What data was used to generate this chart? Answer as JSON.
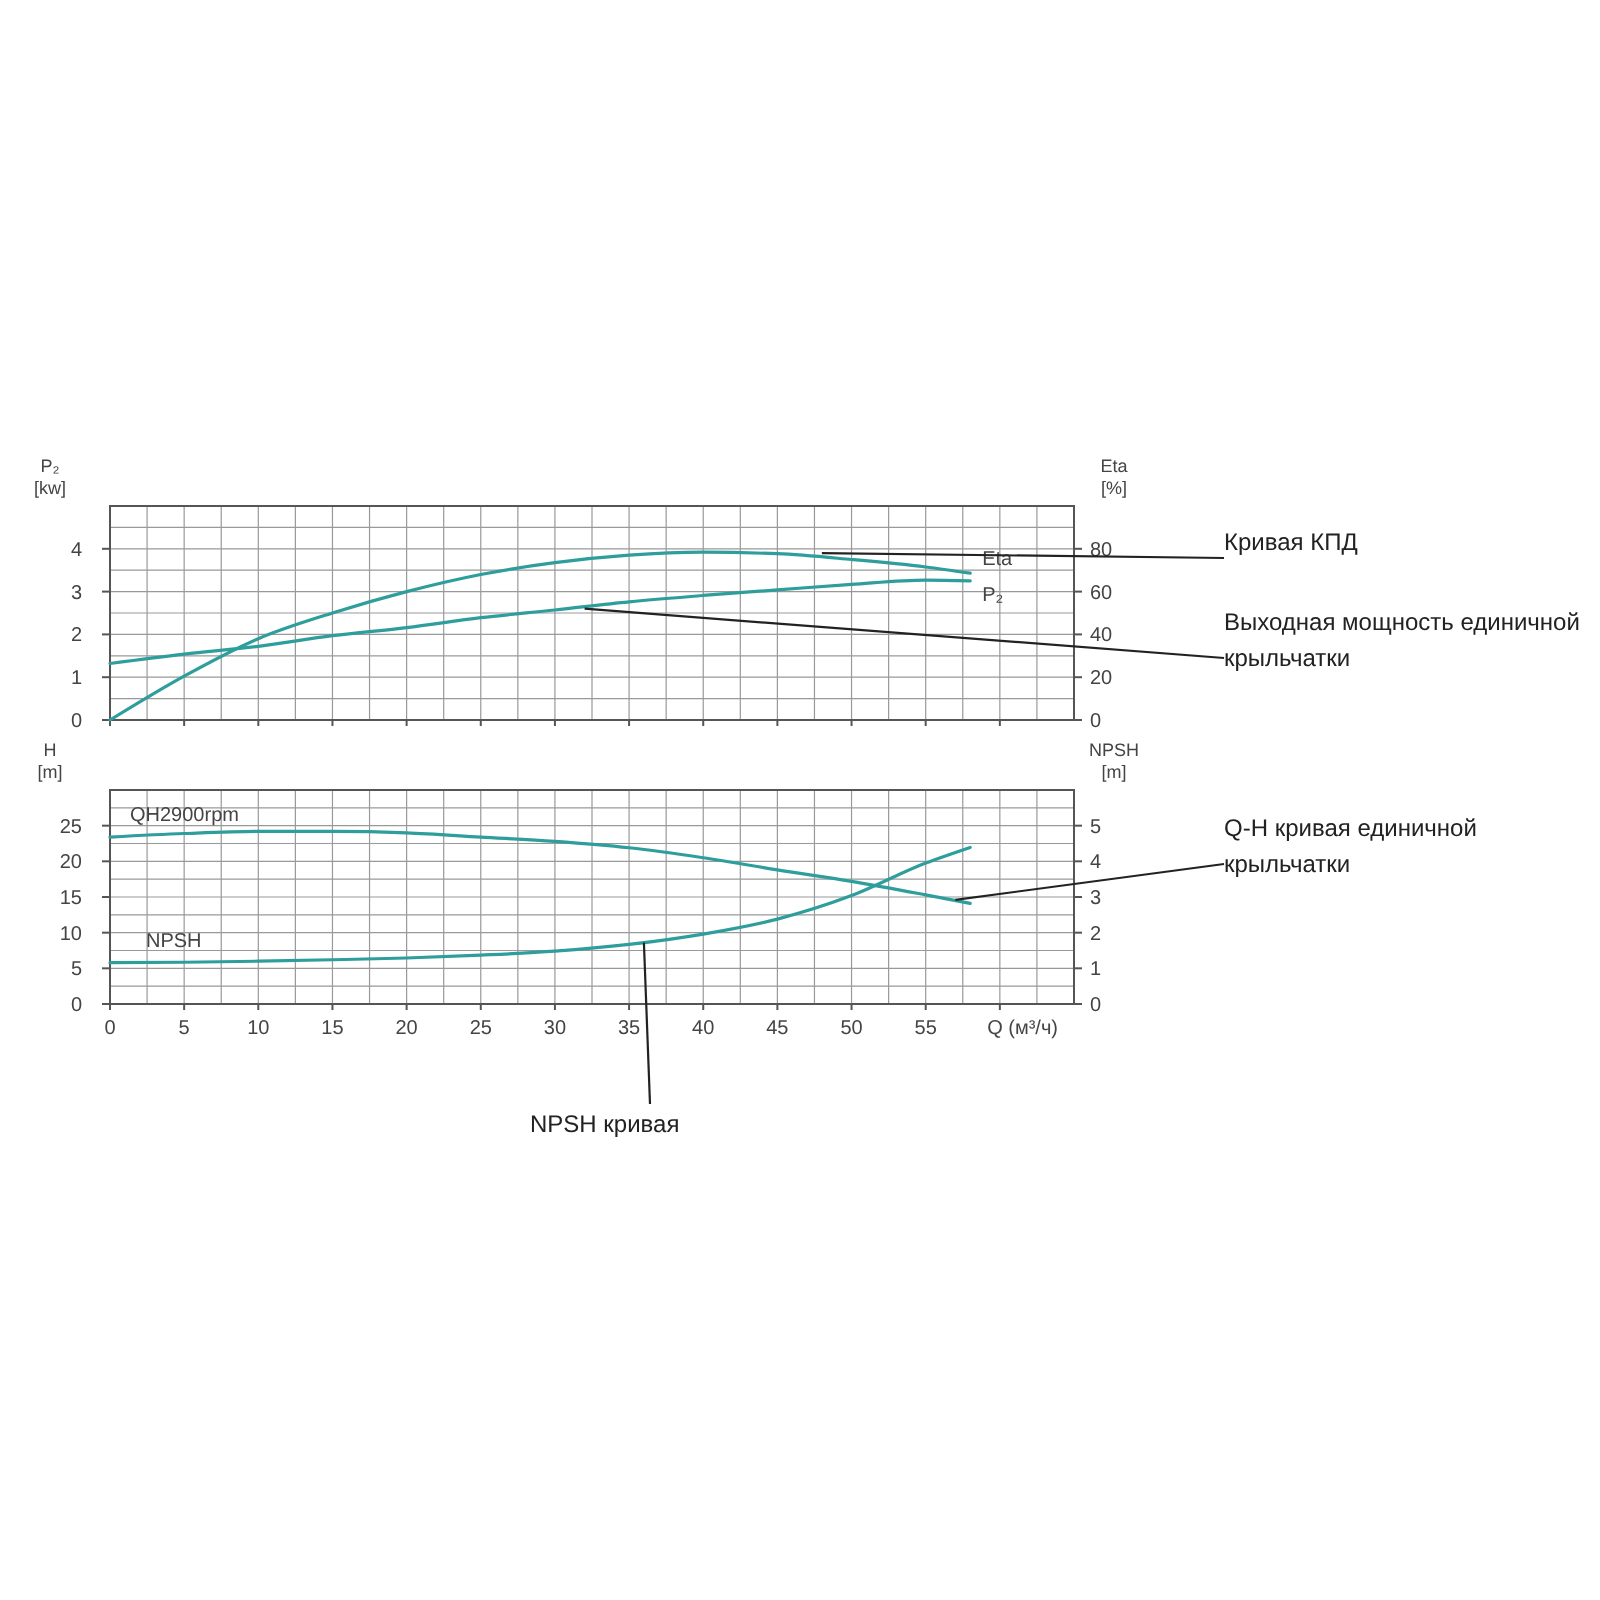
{
  "chart_data": [
    {
      "type": "line",
      "ylabel": "P₂ [kw]",
      "y2label": "Eta [%]",
      "xlim": [
        0,
        65
      ],
      "xticks": [
        0,
        5,
        10,
        15,
        20,
        25,
        30,
        35,
        40,
        45,
        50,
        55,
        {
          "value": 60,
          "label": null
        }
      ],
      "ylim": [
        0,
        5
      ],
      "yticks": [
        0,
        1,
        2,
        3,
        4
      ],
      "y2lim": [
        0,
        100
      ],
      "y2ticks": [
        0,
        20,
        40,
        60,
        80
      ],
      "grid": true,
      "tick_labels": "y",
      "x": [
        0,
        5,
        10,
        15,
        20,
        25,
        30,
        35,
        40,
        45,
        50,
        55,
        58
      ],
      "series": [
        {
          "name": "Eta",
          "axis": "y2",
          "color": "#2e9e9c",
          "values": [
            0,
            20.5,
            38,
            50,
            60,
            68,
            73.5,
            77,
            78.4,
            77.7,
            75,
            71.5,
            68.6
          ]
        },
        {
          "name": "P₂",
          "color": "#2e9e9c",
          "values": [
            1.32,
            1.54,
            1.72,
            1.97,
            2.16,
            2.39,
            2.57,
            2.76,
            2.91,
            3.04,
            3.17,
            3.27,
            3.25
          ]
        }
      ],
      "annotations": [
        {
          "text": "Кривая КПД",
          "x": 48,
          "y": 3.9
        },
        {
          "text": "Выходная мощность единичной крыльчатки",
          "x": 32,
          "y": 2.6
        }
      ]
    },
    {
      "type": "line",
      "xlabel": "Q (м³/ч)",
      "ylabel": "H [m]",
      "y2label": "NPSH [m]",
      "xlim": [
        0,
        65
      ],
      "xticks": [
        0,
        5,
        10,
        15,
        20,
        25,
        30,
        35,
        40,
        45,
        50,
        55,
        {
          "value": 60,
          "label": null
        }
      ],
      "ylim": [
        0,
        30
      ],
      "yticks": [
        0,
        5,
        10,
        15,
        20,
        25
      ],
      "y2lim": [
        0,
        6
      ],
      "y2ticks": [
        0,
        1,
        2,
        3,
        4,
        5
      ],
      "grid": true,
      "x": [
        0,
        5,
        10,
        15,
        20,
        25,
        30,
        35,
        40,
        45,
        50,
        55,
        58
      ],
      "series": [
        {
          "name": "QH2900rpm",
          "color": "#2e9e9c",
          "values": [
            23.4,
            23.9,
            24.2,
            24.2,
            24.0,
            23.4,
            22.8,
            21.9,
            20.5,
            18.8,
            17.2,
            15.3,
            14.1
          ]
        },
        {
          "name": "NPSH",
          "axis": "y2",
          "color": "#2e9e9c",
          "values": [
            1.16,
            1.17,
            1.2,
            1.24,
            1.29,
            1.37,
            1.48,
            1.67,
            1.96,
            2.38,
            3.04,
            3.95,
            4.39
          ]
        }
      ],
      "annotations": [
        {
          "text": "Q-H кривая единичной крыльчатки",
          "x": 57,
          "y": 14.6
        },
        {
          "text": "NPSH кривая",
          "x": 36,
          "y": 8.6
        }
      ]
    }
  ]
}
